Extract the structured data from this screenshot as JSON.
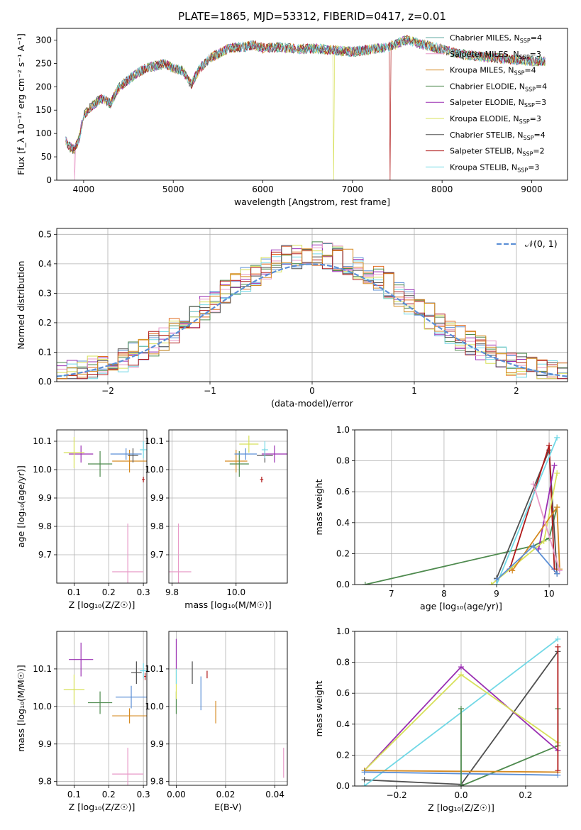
{
  "figure": {
    "title": "PLATE=1865, MJD=53312, FIBERID=0417, z=0.01"
  },
  "colors": {
    "Chabrier MILES": "#5fa9a1",
    "Salpeter MILES": "#e89ac8",
    "Kroupa MILES": "#d58a22",
    "Chabrier ELODIE": "#4e8a4e",
    "Salpeter ELODIE": "#9a2fb2",
    "Kroupa ELODIE": "#d7e05a",
    "Chabrier STELIB": "#505050",
    "Salpeter STELIB": "#b01a1a",
    "Kroupa STELIB": "#72d8e6",
    "normal": "#5b8fd6",
    "hist_blue": "#5b8fd6",
    "hist_orange": "#e06b1f"
  },
  "chart_data": [
    {
      "id": "spectrum",
      "type": "line",
      "title": "PLATE=1865, MJD=53312, FIBERID=0417, z=0.01",
      "xlabel": "wavelength [Angstrom, rest frame]",
      "ylabel": "Flux [f_λ 10⁻¹⁷ erg cm⁻² s⁻¹ A⁻¹]",
      "xlim": [
        3700,
        9400
      ],
      "ylim": [
        0,
        325
      ],
      "xticks": [
        "4000",
        "5000",
        "6000",
        "7000",
        "8000",
        "9000"
      ],
      "yticks": [
        "0",
        "50",
        "100",
        "150",
        "200",
        "250",
        "300"
      ],
      "grid": false,
      "legend_position": "top-right",
      "continuum": {
        "x": [
          3800,
          3850,
          3900,
          3950,
          4000,
          4100,
          4200,
          4300,
          4400,
          4500,
          4600,
          4700,
          4800,
          4900,
          5000,
          5100,
          5200,
          5300,
          5400,
          5500,
          5600,
          5700,
          5800,
          5900,
          6000,
          6200,
          6400,
          6600,
          6800,
          7000,
          7200,
          7400,
          7600,
          7800,
          8000,
          8200,
          8400,
          8600,
          8800,
          9000,
          9100
        ],
        "y": [
          85,
          70,
          65,
          90,
          140,
          160,
          175,
          165,
          200,
          215,
          230,
          240,
          245,
          250,
          240,
          235,
          205,
          240,
          260,
          270,
          280,
          285,
          285,
          290,
          282,
          285,
          280,
          282,
          278,
          275,
          280,
          285,
          300,
          290,
          280,
          270,
          265,
          262,
          258,
          255,
          255
        ]
      },
      "dropouts": [
        {
          "series": "Salpeter MILES",
          "x": 3900
        },
        {
          "series": "Kroupa ELODIE",
          "x": 6790
        },
        {
          "series": "Salpeter STELIB",
          "x": 7420
        }
      ],
      "series": [
        {
          "name": "Chabrier MILES",
          "n_ssp": "4"
        },
        {
          "name": "Salpeter MILES",
          "n_ssp": "3"
        },
        {
          "name": "Kroupa MILES",
          "n_ssp": "4"
        },
        {
          "name": "Chabrier ELODIE",
          "n_ssp": "4"
        },
        {
          "name": "Salpeter ELODIE",
          "n_ssp": "3"
        },
        {
          "name": "Kroupa ELODIE",
          "n_ssp": "3"
        },
        {
          "name": "Chabrier STELIB",
          "n_ssp": "4"
        },
        {
          "name": "Salpeter STELIB",
          "n_ssp": "2"
        },
        {
          "name": "Kroupa STELIB",
          "n_ssp": "3"
        }
      ]
    },
    {
      "id": "residuals",
      "type": "line",
      "xlabel": "(data-model)/error",
      "ylabel": "Normed distribution",
      "xlim": [
        -2.5,
        2.5
      ],
      "ylim": [
        0,
        0.52
      ],
      "xticks": [
        "−2",
        "−1",
        "0",
        "1",
        "2"
      ],
      "yticks": [
        "0.0",
        "0.1",
        "0.2",
        "0.3",
        "0.4",
        "0.5"
      ],
      "grid": true,
      "legend_position": "top-right",
      "normal_label": "𝒩(0, 1)",
      "bin_width": 0.1
    },
    {
      "id": "age_vs_Z",
      "type": "scatter",
      "xlabel": "Z [log₁₀(Z/Z☉)]",
      "ylabel": "age  [log₁₀(age/yr)]",
      "xlim": [
        0.05,
        0.31
      ],
      "ylim": [
        9.6,
        10.14
      ],
      "xticks": [
        "0.1",
        "0.2",
        "0.3"
      ],
      "yticks": [
        "9.7",
        "9.8",
        "9.9",
        "10.0",
        "10.1"
      ],
      "grid": true
    },
    {
      "id": "age_vs_mass",
      "type": "scatter",
      "xlabel": "mass [log₁₀(M/M☉)]",
      "ylabel": "",
      "xlim": [
        9.79,
        10.16
      ],
      "ylim": [
        9.6,
        10.14
      ],
      "xticks": [
        "9.8",
        "10.0"
      ],
      "yticks": [
        "9.7",
        "9.8",
        "9.9",
        "10.0",
        "10.1"
      ],
      "grid": true
    },
    {
      "id": "mass_vs_Z",
      "type": "scatter",
      "xlabel": "Z [log₁₀(Z/Z☉)]",
      "ylabel": "mass [log₁₀(M/M☉)]",
      "xlim": [
        0.05,
        0.31
      ],
      "ylim": [
        9.79,
        10.2
      ],
      "xticks": [
        "0.1",
        "0.2",
        "0.3"
      ],
      "yticks": [
        "9.8",
        "9.9",
        "10.0",
        "10.1"
      ],
      "grid": true
    },
    {
      "id": "mass_vs_EBV",
      "type": "scatter",
      "xlabel": "E(B-V)",
      "ylabel": "",
      "xlim": [
        -0.003,
        0.045
      ],
      "ylim": [
        9.79,
        10.2
      ],
      "xticks": [
        "0.00",
        "0.02",
        "0.04"
      ],
      "yticks": [
        "9.8",
        "9.9",
        "10.0",
        "10.1"
      ],
      "grid": true
    },
    {
      "id": "massweight_vs_age",
      "type": "line",
      "xlabel": "age  [log₁₀(age/yr)]",
      "ylabel": "mass weight",
      "xlim": [
        6.3,
        10.35
      ],
      "ylim": [
        0,
        1.0
      ],
      "xticks": [
        "7",
        "8",
        "9",
        "10"
      ],
      "yticks": [
        "0.0",
        "0.2",
        "0.4",
        "0.6",
        "0.8",
        "1.0"
      ],
      "grid": true
    },
    {
      "id": "massweight_vs_Z",
      "type": "line",
      "xlabel": "Z [log₁₀(Z/Z☉)]",
      "ylabel": "mass weight",
      "xlim": [
        -0.33,
        0.33
      ],
      "ylim": [
        0,
        1.0
      ],
      "xticks": [
        "−0.2",
        "0.0",
        "0.2"
      ],
      "yticks": [
        "0.0",
        "0.2",
        "0.4",
        "0.6",
        "0.8",
        "1.0"
      ],
      "grid": true
    }
  ],
  "points": {
    "age_Z": [
      {
        "s": "Salpeter MILES",
        "x": 0.255,
        "y": 9.64,
        "xe": 0.045,
        "ye": 0.17
      },
      {
        "s": "Kroupa MILES",
        "x": 0.26,
        "y": 10.03,
        "xe": 0.05,
        "ye": 0.04
      },
      {
        "s": "Chabrier ELODIE",
        "x": 0.175,
        "y": 10.02,
        "xe": 0.035,
        "ye": 0.045
      },
      {
        "s": "Salpeter ELODIE",
        "x": 0.12,
        "y": 10.055,
        "xe": 0.035,
        "ye": 0.03
      },
      {
        "s": "Kroupa ELODIE",
        "x": 0.1,
        "y": 10.06,
        "xe": 0.03,
        "ye": 0.055
      },
      {
        "s": "Chabrier STELIB",
        "x": 0.27,
        "y": 10.05,
        "xe": 0.015,
        "ye": 0.025
      },
      {
        "s": "Salpeter STELIB",
        "x": 0.3,
        "y": 9.965,
        "xe": 0.004,
        "ye": 0.01
      },
      {
        "s": "Kroupa STELIB",
        "x": 0.3,
        "y": 10.07,
        "xe": 0.01,
        "ye": 0.03
      },
      {
        "s": "normal",
        "x": 0.25,
        "y": 10.055,
        "xe": 0.045,
        "ye": 0.02
      }
    ],
    "age_mass": [
      {
        "s": "Salpeter MILES",
        "x": 9.82,
        "y": 9.64,
        "xe": 0.04,
        "ye": 0.17
      },
      {
        "s": "Kroupa MILES",
        "x": 10.0,
        "y": 10.03,
        "xe": 0.035,
        "ye": 0.04
      },
      {
        "s": "Chabrier ELODIE",
        "x": 10.01,
        "y": 10.02,
        "xe": 0.03,
        "ye": 0.045
      },
      {
        "s": "Salpeter ELODIE",
        "x": 10.12,
        "y": 10.055,
        "xe": 0.04,
        "ye": 0.03
      },
      {
        "s": "Kroupa ELODIE",
        "x": 10.04,
        "y": 10.09,
        "xe": 0.03,
        "ye": 0.03
      },
      {
        "s": "Chabrier STELIB",
        "x": 10.09,
        "y": 10.05,
        "xe": 0.025,
        "ye": 0.025
      },
      {
        "s": "Salpeter STELIB",
        "x": 10.08,
        "y": 9.965,
        "xe": 0.005,
        "ye": 0.01
      },
      {
        "s": "Kroupa STELIB",
        "x": 10.09,
        "y": 10.07,
        "xe": 0.01,
        "ye": 0.03
      },
      {
        "s": "normal",
        "x": 10.03,
        "y": 10.055,
        "xe": 0.035,
        "ye": 0.02
      }
    ],
    "mass_Z": [
      {
        "s": "Salpeter MILES",
        "x": 0.255,
        "y": 9.82,
        "xe": 0.045,
        "ye": 0.07
      },
      {
        "s": "Kroupa MILES",
        "x": 0.26,
        "y": 9.975,
        "xe": 0.05,
        "ye": 0.02
      },
      {
        "s": "Chabrier ELODIE",
        "x": 0.175,
        "y": 10.01,
        "xe": 0.035,
        "ye": 0.03
      },
      {
        "s": "Salpeter ELODIE",
        "x": 0.12,
        "y": 10.125,
        "xe": 0.035,
        "ye": 0.045
      },
      {
        "s": "Kroupa ELODIE",
        "x": 0.1,
        "y": 10.045,
        "xe": 0.03,
        "ye": 0.04
      },
      {
        "s": "Chabrier STELIB",
        "x": 0.28,
        "y": 10.09,
        "xe": 0.015,
        "ye": 0.03
      },
      {
        "s": "Salpeter STELIB",
        "x": 0.305,
        "y": 10.08,
        "xe": 0.003,
        "ye": 0.01
      },
      {
        "s": "Kroupa STELIB",
        "x": 0.3,
        "y": 10.095,
        "xe": 0.01,
        "ye": 0.02
      },
      {
        "s": "normal",
        "x": 0.265,
        "y": 10.025,
        "xe": 0.045,
        "ye": 0.03
      }
    ],
    "mass_EBV": [
      {
        "s": "Salpeter MILES",
        "x": 0.0435,
        "y": 9.85,
        "ye": 0.04
      },
      {
        "s": "Kroupa MILES",
        "x": 0.016,
        "y": 9.985,
        "ye": 0.03
      },
      {
        "s": "Chabrier ELODIE",
        "x": 0.0,
        "y": 10.01,
        "ye": 0.03
      },
      {
        "s": "Salpeter ELODIE",
        "x": 0.0,
        "y": 10.14,
        "ye": 0.04
      },
      {
        "s": "Kroupa ELODIE",
        "x": 0.0,
        "y": 10.06,
        "ye": 0.04
      },
      {
        "s": "Chabrier STELIB",
        "x": 0.0065,
        "y": 10.09,
        "ye": 0.03
      },
      {
        "s": "Salpeter STELIB",
        "x": 0.0125,
        "y": 10.085,
        "ye": 0.01
      },
      {
        "s": "Kroupa STELIB",
        "x": 0.0,
        "y": 10.08,
        "ye": 0.02
      },
      {
        "s": "normal",
        "x": 0.01,
        "y": 10.035,
        "ye": 0.045
      }
    ],
    "mw_age": [
      {
        "s": "Chabrier ELODIE",
        "x": [
          6.5,
          9.7,
          10.0,
          10.15
        ],
        "y": [
          0.0,
          0.25,
          0.3,
          0.5
        ]
      },
      {
        "s": "Chabrier STELIB",
        "x": [
          9.0,
          10.0,
          10.15
        ],
        "y": [
          0.04,
          0.87,
          0.07
        ]
      },
      {
        "s": "Salpeter STELIB",
        "x": [
          9.25,
          10.0,
          10.1
        ],
        "y": [
          0.1,
          0.9,
          0.1
        ]
      },
      {
        "s": "Kroupa STELIB",
        "x": [
          9.0,
          10.15
        ],
        "y": [
          0.0,
          0.95
        ]
      },
      {
        "s": "Salpeter ELODIE",
        "x": [
          9.8,
          10.1
        ],
        "y": [
          0.23,
          0.77
        ]
      },
      {
        "s": "Kroupa ELODIE",
        "x": [
          8.9,
          9.9,
          10.15
        ],
        "y": [
          0.0,
          0.28,
          0.72
        ]
      },
      {
        "s": "Kroupa MILES",
        "x": [
          9.3,
          10.15,
          10.2
        ],
        "y": [
          0.09,
          0.5,
          0.1
        ]
      },
      {
        "s": "Salpeter MILES",
        "x": [
          9.7,
          10.2
        ],
        "y": [
          0.65,
          0.09
        ]
      },
      {
        "s": "normal",
        "x": [
          9.0,
          9.7,
          10.15
        ],
        "y": [
          0.03,
          0.25,
          0.07
        ]
      }
    ],
    "mw_Z": [
      {
        "s": "Chabrier ELODIE",
        "x": [
          0.0,
          0.3,
          0.3
        ],
        "y": [
          0.0,
          0.26,
          0.5
        ]
      },
      {
        "s": "Chabrier STELIB",
        "x": [
          -0.3,
          0.0,
          0.3
        ],
        "y": [
          0.04,
          0.01,
          0.87
        ]
      },
      {
        "s": "Kroupa STELIB",
        "x": [
          -0.3,
          0.3
        ],
        "y": [
          0.0,
          0.95
        ]
      },
      {
        "s": "Salpeter ELODIE",
        "x": [
          -0.3,
          0.0,
          0.3
        ],
        "y": [
          0.1,
          0.77,
          0.23
        ]
      },
      {
        "s": "Kroupa ELODIE",
        "x": [
          -0.3,
          0.0,
          0.3
        ],
        "y": [
          0.1,
          0.72,
          0.28
        ]
      },
      {
        "s": "Kroupa MILES",
        "x": [
          -0.3,
          0.3
        ],
        "y": [
          0.1,
          0.09
        ]
      },
      {
        "s": "normal",
        "x": [
          -0.3,
          0.3
        ],
        "y": [
          0.09,
          0.07
        ]
      },
      {
        "s": "Salpeter STELIB",
        "x": [
          0.3,
          0.3
        ],
        "y": [
          0.1,
          0.9
        ]
      },
      {
        "s": "Chabrier ELODIE",
        "x": [
          0.0,
          0.0
        ],
        "y": [
          0.0,
          0.5
        ]
      }
    ]
  }
}
